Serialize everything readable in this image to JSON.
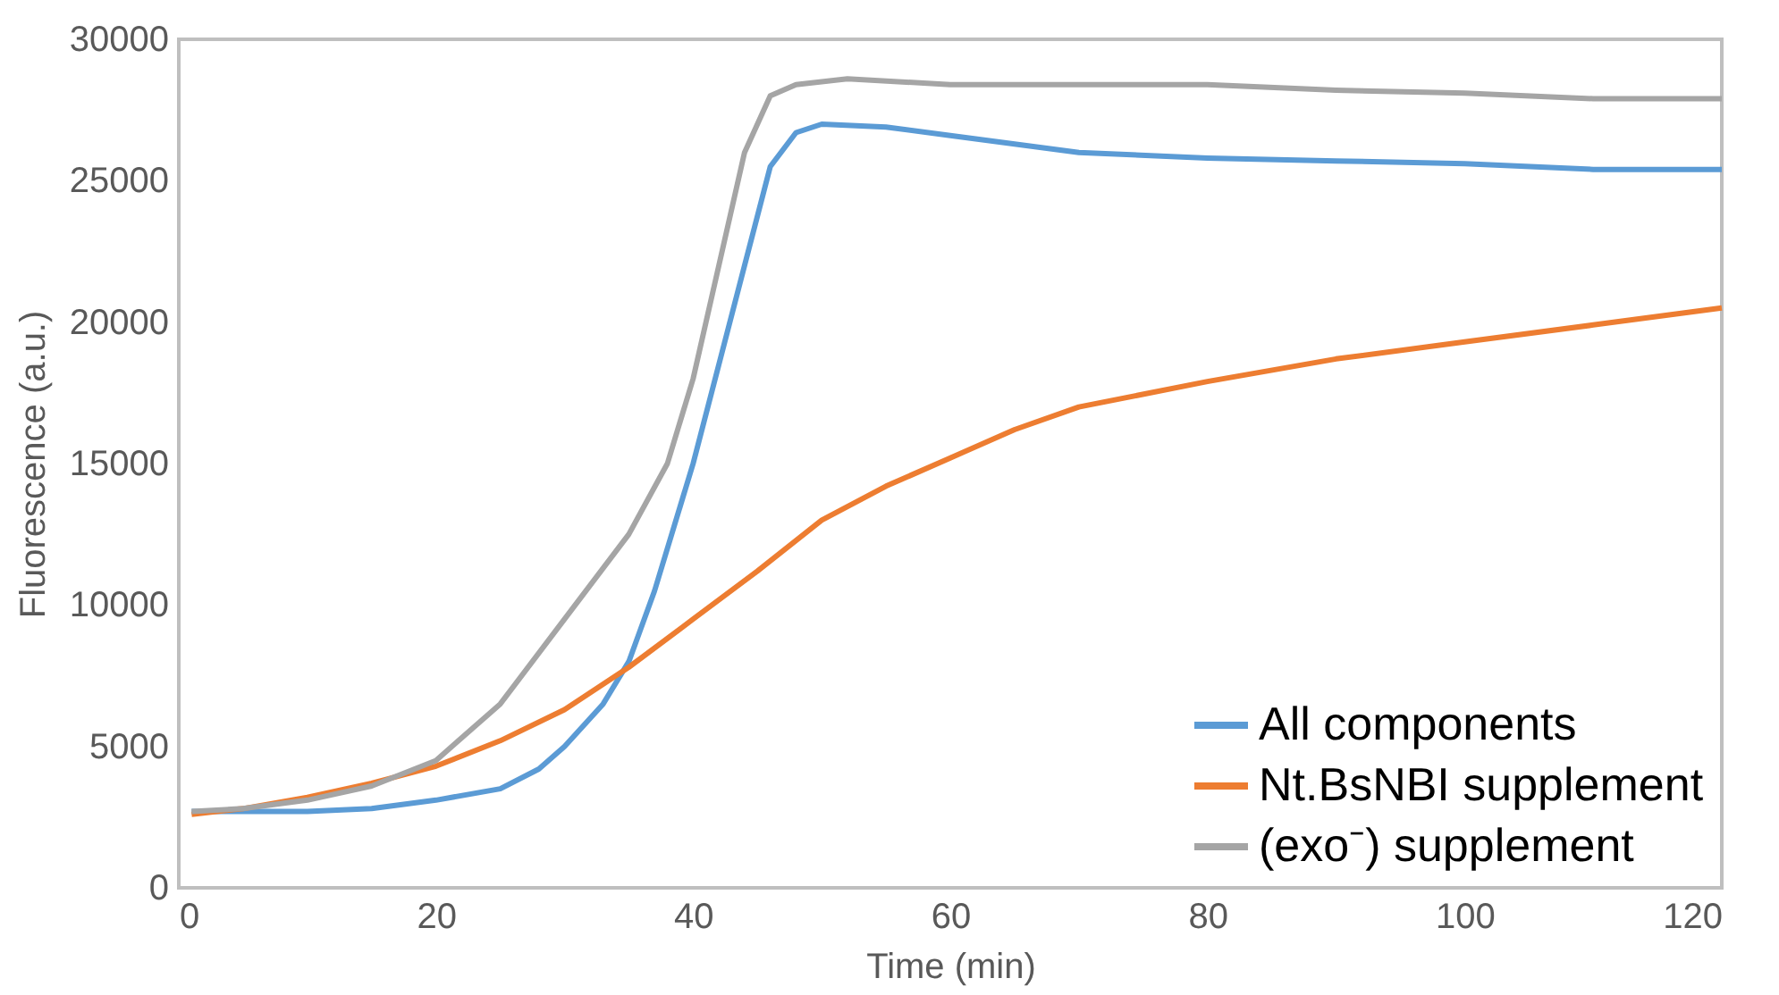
{
  "chart_data": {
    "type": "line",
    "xlabel": "Time (min)",
    "ylabel": "Fluorescence (a.u.)",
    "xlim": [
      0,
      120
    ],
    "xticks": [
      0,
      20,
      40,
      60,
      80,
      100,
      120
    ],
    "ylim": [
      0,
      30000
    ],
    "yticks": [
      0,
      5000,
      10000,
      15000,
      20000,
      25000,
      30000
    ],
    "grid": false,
    "legend": "bottom right",
    "marker": "none",
    "line_style": "solid",
    "series": [
      {
        "name": "All components",
        "color": "#5b9bd5",
        "x": [
          1,
          5,
          10,
          15,
          20,
          25,
          28,
          30,
          33,
          35,
          37,
          40,
          42,
          44,
          46,
          48,
          50,
          55,
          60,
          70,
          80,
          90,
          100,
          110,
          115,
          120
        ],
        "values": [
          2700,
          2700,
          2700,
          2800,
          3100,
          3500,
          4200,
          5000,
          6500,
          8000,
          10500,
          15000,
          18500,
          22000,
          25500,
          26700,
          27000,
          26900,
          26600,
          26000,
          25800,
          25700,
          25600,
          25400,
          25400,
          25400
        ]
      },
      {
        "name": "Nt.BsNBI supplement",
        "color": "#ed7d31",
        "x": [
          1,
          5,
          10,
          15,
          20,
          25,
          30,
          35,
          40,
          45,
          50,
          55,
          60,
          65,
          70,
          80,
          90,
          100,
          110,
          120
        ],
        "values": [
          2600,
          2800,
          3200,
          3700,
          4300,
          5200,
          6300,
          7800,
          9500,
          11200,
          13000,
          14200,
          15200,
          16200,
          17000,
          17900,
          18700,
          19300,
          19900,
          20500
        ]
      },
      {
        "name": "(exo⁻) supplement",
        "color": "#a5a5a5",
        "x": [
          1,
          5,
          10,
          15,
          20,
          25,
          30,
          35,
          38,
          40,
          42,
          44,
          46,
          48,
          52,
          60,
          70,
          80,
          90,
          100,
          110,
          120
        ],
        "values": [
          2700,
          2800,
          3100,
          3600,
          4500,
          6500,
          9500,
          12500,
          15000,
          18000,
          22000,
          26000,
          28000,
          28400,
          28600,
          28400,
          28400,
          28400,
          28200,
          28100,
          27900,
          27900
        ]
      }
    ]
  }
}
